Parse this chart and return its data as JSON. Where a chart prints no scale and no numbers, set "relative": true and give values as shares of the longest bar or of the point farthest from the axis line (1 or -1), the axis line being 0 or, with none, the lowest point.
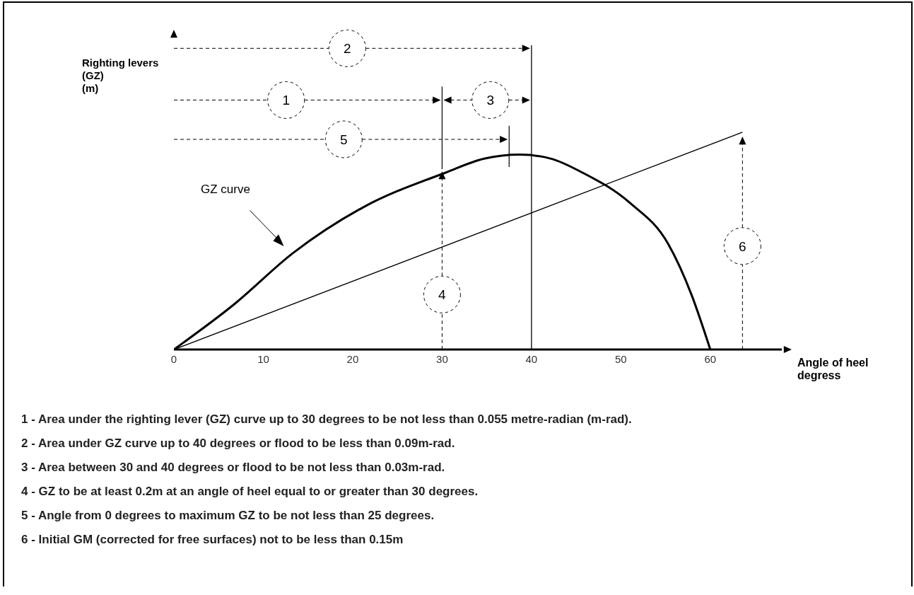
{
  "chart_data": {
    "type": "line",
    "relative": true,
    "ylabel": "Righting levers\n(GZ)\n(m)",
    "xlabel": "Angle of heel\ndegress",
    "xlim": [
      0,
      68
    ],
    "xticks": [
      0,
      10,
      20,
      30,
      40,
      50,
      60
    ],
    "marker": "none",
    "series": [
      {
        "name": "GZ curve",
        "color": "#000000",
        "x": [
          0,
          6.8,
          13.3,
          21.2,
          30.4,
          34.7,
          38.7,
          42.2,
          45.7,
          51,
          55.3,
          57.9,
          60
        ],
        "values": [
          0,
          0.21,
          0.443,
          0.655,
          0.814,
          0.878,
          0.897,
          0.878,
          0.814,
          0.675,
          0.485,
          0.252,
          0
        ]
      },
      {
        "color": "#000000",
        "x": [
          0,
          63.6
        ],
        "values": [
          0,
          1
        ]
      }
    ],
    "ref_lines": [
      {
        "axis": "x",
        "value": 40,
        "color": "#000000"
      }
    ],
    "annotations": [
      "1",
      "2",
      "3",
      "4",
      "5",
      "6",
      "1 - Area under the righting lever (GZ) curve up to 30 degrees to be not less than 0.055 metre-radian (m-rad).",
      "2 - Area under GZ curve up to 40 degrees or flood to be less than 0.09m-rad.",
      "3 - Area between 30 and 40 degrees or flood to be not less than 0.03m-rad.",
      "4 - GZ to be at least 0.2m at an angle of heel equal to or greater than 30 degrees.",
      "5 - Angle from 0 degrees to maximum GZ to be not less than 25 degrees.",
      "6 - Initial GM (corrected for free surfaces) not to be less than 0.15m"
    ]
  }
}
